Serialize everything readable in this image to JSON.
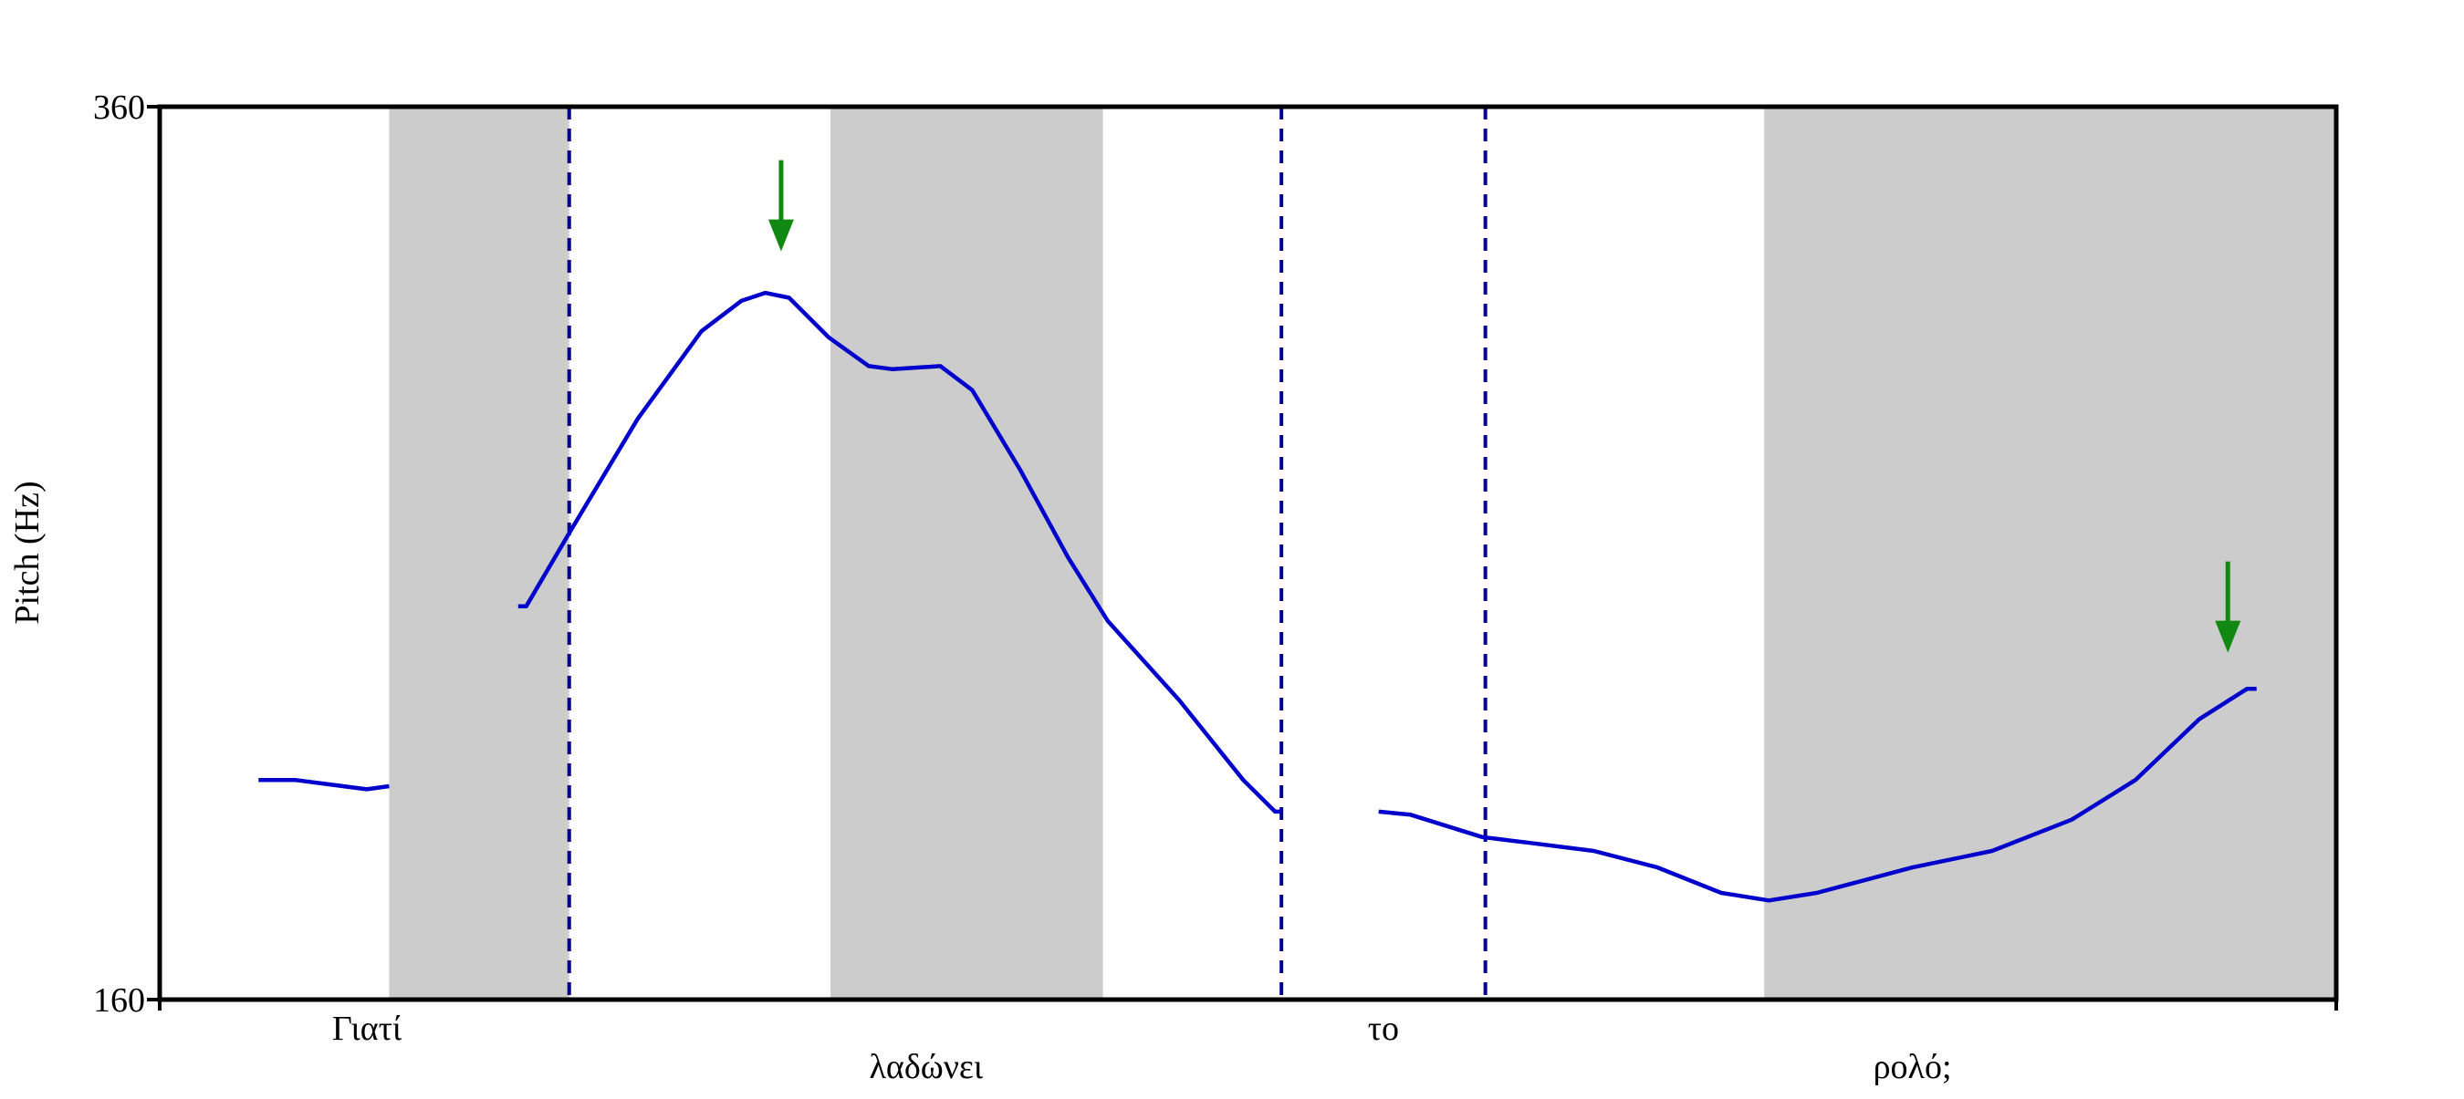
{
  "chart_data": {
    "type": "line",
    "ylabel": "Pitch (Hz)",
    "ylim": [
      160,
      360
    ],
    "yticks": [
      160,
      360
    ],
    "xlim": [
      0,
      1.366
    ],
    "color": "#0000cc",
    "x": [
      0.062,
      0.085,
      0.13,
      0.144,
      null,
      0.225,
      0.23,
      0.257,
      0.3,
      0.34,
      0.365,
      0.38,
      0.395,
      0.42,
      0.445,
      0.46,
      0.49,
      0.51,
      0.54,
      0.57,
      0.595,
      0.64,
      0.68,
      0.7,
      0.704,
      null,
      0.765,
      0.785,
      0.83,
      0.86,
      0.9,
      0.94,
      0.98,
      1.01,
      1.04,
      1.1,
      1.15,
      1.2,
      1.24,
      1.28,
      1.31,
      1.316
    ],
    "values": [
      209.2,
      209.2,
      207.1,
      207.8,
      null,
      248.1,
      248.1,
      264.5,
      290.1,
      309.7,
      316.5,
      318.3,
      317.2,
      308.3,
      301.9,
      301.2,
      301.9,
      296.5,
      278.7,
      259.1,
      244.8,
      227.0,
      209.2,
      202.1,
      202.1,
      null,
      202.1,
      201.4,
      196.4,
      195.1,
      193.3,
      189.6,
      183.9,
      182.2,
      183.9,
      189.6,
      193.3,
      200.3,
      209.2,
      222.8,
      229.6,
      229.6
    ],
    "shaded_intervals": [
      [
        0.144,
        0.257
      ],
      [
        0.421,
        0.592
      ],
      [
        1.007,
        1.366
      ]
    ],
    "shade_color": "#cccccc",
    "boundaries": [
      0.257,
      0.704,
      0.832
    ],
    "boundary_color": "#00008b",
    "arrows": [
      {
        "x": 0.39,
        "y": 327.6
      },
      {
        "x": 1.298,
        "y": 237.7
      }
    ],
    "arrow_color": "#118811",
    "words": [
      {
        "label": "Γιατί",
        "x": 0.13
      },
      {
        "label": "λαδώνει",
        "x": 0.481
      },
      {
        "label": "το",
        "x": 0.768
      },
      {
        "label": "ρολό;",
        "x": 1.1
      }
    ]
  }
}
